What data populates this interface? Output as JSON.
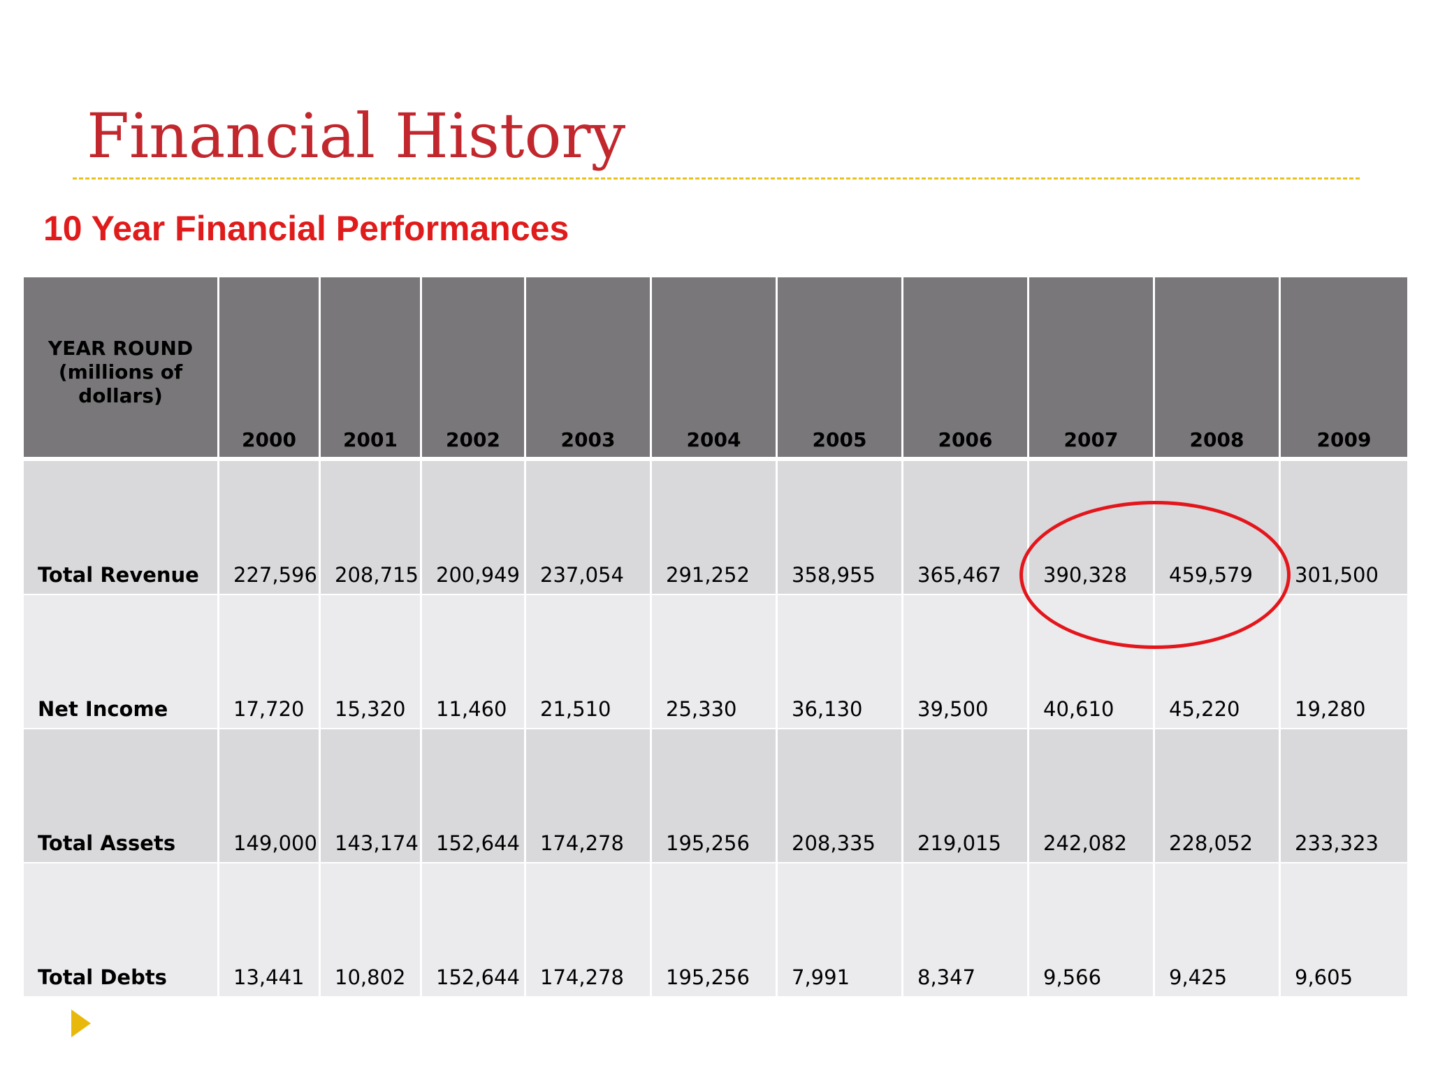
{
  "title": "Financial History",
  "subtitle": "10 Year Financial Performances",
  "table": {
    "corner_header": "YEAR ROUND (millions of dollars)",
    "years": [
      "2000",
      "2001",
      "2002",
      "2003",
      "2004",
      "2005",
      "2006",
      "2007",
      "2008",
      "2009"
    ],
    "rows": [
      {
        "label": "Total Revenue",
        "values": [
          "227,596",
          "208,715",
          "200,949",
          "237,054",
          "291,252",
          "358,955",
          "365,467",
          "390,328",
          "459,579",
          "301,500"
        ]
      },
      {
        "label": "Net Income",
        "values": [
          "17,720",
          "15,320",
          "11,460",
          "21,510",
          "25,330",
          "36,130",
          "39,500",
          "40,610",
          "45,220",
          "19,280"
        ]
      },
      {
        "label": "Total Assets",
        "values": [
          "149,000",
          "143,174",
          "152,644",
          "174,278",
          "195,256",
          "208,335",
          "219,015",
          "242,082",
          "228,052",
          "233,323"
        ]
      },
      {
        "label": "Total Debts",
        "values": [
          "13,441",
          "10,802",
          "152,644",
          "174,278",
          "195,256",
          "7,991",
          "8,347",
          "9,566",
          "9,425",
          "9,605"
        ]
      }
    ]
  },
  "colors": {
    "title": "#c1272d",
    "subtitle": "#e01b1b",
    "divider": "#e8c21a",
    "header_bg": "#79777a",
    "row_dark": "#d9d8db",
    "row_light": "#ebeaed",
    "highlight_circle": "#e3161b",
    "bullet": "#e8b90c"
  },
  "annotations": {
    "highlight": "red ellipse around Total Revenue 2007 and 2008",
    "bullet_icon": "triangle-bullet-icon"
  }
}
